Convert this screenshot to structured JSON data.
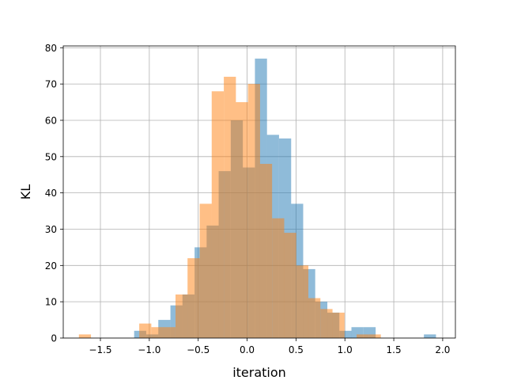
{
  "chart_data": {
    "type": "bar",
    "subtype": "overlaid-histogram",
    "title": "",
    "xlabel": "iteration",
    "ylabel": "KL",
    "xlim": [
      -1.88,
      2.13
    ],
    "ylim": [
      0,
      80.5
    ],
    "xticks": [
      -1.5,
      -1.0,
      -0.5,
      0.0,
      0.5,
      1.0,
      1.5,
      2.0
    ],
    "xtick_labels": [
      "−1.5",
      "−1.0",
      "−0.5",
      "0.0",
      "0.5",
      "1.0",
      "1.5",
      "2.0"
    ],
    "yticks": [
      0,
      10,
      20,
      30,
      40,
      50,
      60,
      70,
      80
    ],
    "ytick_labels": [
      "0",
      "10",
      "20",
      "30",
      "40",
      "50",
      "60",
      "70",
      "80"
    ],
    "grid": true,
    "legend": "none",
    "series": [
      {
        "color": "#1f77b4",
        "alpha": 0.5,
        "bin_width": 0.1235,
        "bins": [
          {
            "x0": -1.155,
            "value": 2
          },
          {
            "x0": -1.031,
            "value": 1
          },
          {
            "x0": -0.908,
            "value": 5
          },
          {
            "x0": -0.784,
            "value": 9
          },
          {
            "x0": -0.661,
            "value": 12
          },
          {
            "x0": -0.537,
            "value": 25
          },
          {
            "x0": -0.414,
            "value": 31
          },
          {
            "x0": -0.291,
            "value": 46
          },
          {
            "x0": -0.167,
            "value": 60
          },
          {
            "x0": -0.044,
            "value": 47
          },
          {
            "x0": 0.08,
            "value": 77
          },
          {
            "x0": 0.203,
            "value": 56
          },
          {
            "x0": 0.327,
            "value": 55
          },
          {
            "x0": 0.45,
            "value": 37
          },
          {
            "x0": 0.573,
            "value": 19
          },
          {
            "x0": 0.697,
            "value": 10
          },
          {
            "x0": 0.82,
            "value": 7
          },
          {
            "x0": 0.944,
            "value": 2
          },
          {
            "x0": 1.067,
            "value": 3
          },
          {
            "x0": 1.191,
            "value": 3
          },
          {
            "x0": 1.314,
            "value": 0
          },
          {
            "x0": 1.438,
            "value": 0
          },
          {
            "x0": 1.561,
            "value": 0
          },
          {
            "x0": 1.684,
            "value": 0
          },
          {
            "x0": 1.808,
            "value": 1
          }
        ]
      },
      {
        "color": "#ff7f0e",
        "alpha": 0.5,
        "bin_width": 0.1235,
        "bins": [
          {
            "x0": -1.72,
            "value": 1
          },
          {
            "x0": -1.597,
            "value": 0
          },
          {
            "x0": -1.473,
            "value": 0
          },
          {
            "x0": -1.35,
            "value": 0
          },
          {
            "x0": -1.226,
            "value": 0
          },
          {
            "x0": -1.103,
            "value": 4
          },
          {
            "x0": -0.979,
            "value": 3
          },
          {
            "x0": -0.856,
            "value": 3
          },
          {
            "x0": -0.732,
            "value": 12
          },
          {
            "x0": -0.609,
            "value": 22
          },
          {
            "x0": -0.485,
            "value": 37
          },
          {
            "x0": -0.362,
            "value": 68
          },
          {
            "x0": -0.238,
            "value": 72
          },
          {
            "x0": -0.115,
            "value": 65
          },
          {
            "x0": 0.009,
            "value": 70
          },
          {
            "x0": 0.132,
            "value": 48
          },
          {
            "x0": 0.256,
            "value": 33
          },
          {
            "x0": 0.379,
            "value": 29
          },
          {
            "x0": 0.503,
            "value": 20
          },
          {
            "x0": 0.626,
            "value": 11
          },
          {
            "x0": 0.75,
            "value": 8
          },
          {
            "x0": 0.873,
            "value": 7
          },
          {
            "x0": 0.997,
            "value": 0
          },
          {
            "x0": 1.12,
            "value": 1
          },
          {
            "x0": 1.244,
            "value": 1
          }
        ]
      }
    ]
  }
}
